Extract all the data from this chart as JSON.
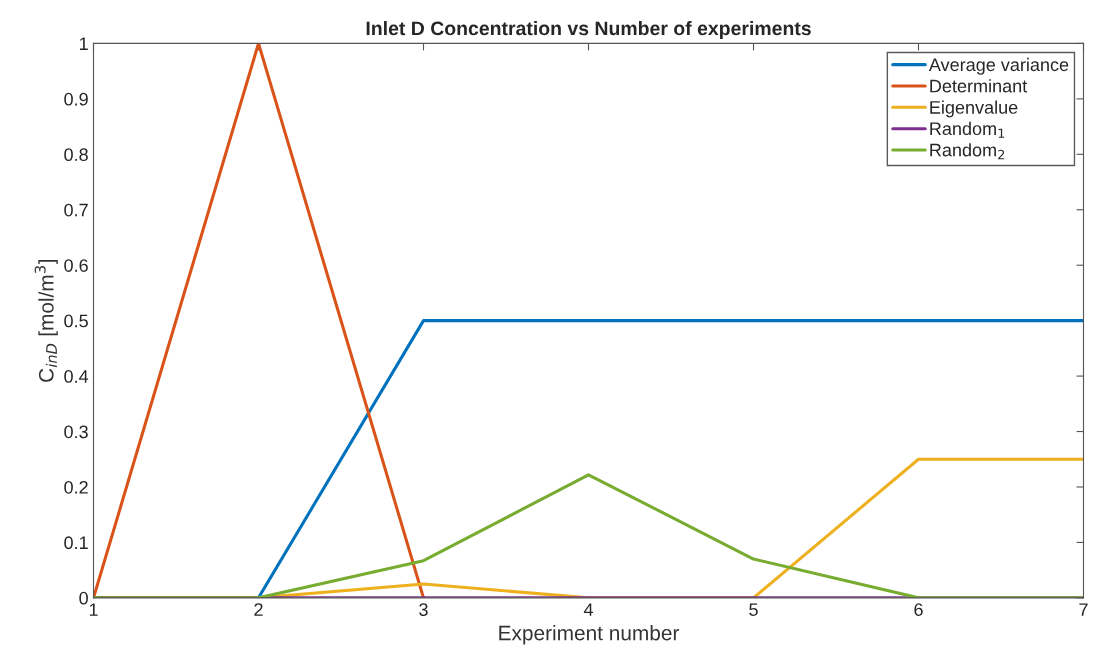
{
  "chart_data": {
    "type": "line",
    "title": "Inlet D Concentration vs Number of experiments",
    "xlabel": "Experiment number",
    "ylabel": "C$_{inD}$ [mol/m$^{3}$]",
    "x": [
      1,
      2,
      3,
      4,
      5,
      6,
      7
    ],
    "series": [
      {
        "name": "Average variance",
        "color": "#0072bd",
        "values": [
          0,
          0,
          0.5,
          0.5,
          0.5,
          0.5,
          0.5
        ]
      },
      {
        "name": "Determinant",
        "color": "#d95319",
        "values": [
          0,
          1,
          0,
          null,
          null,
          null,
          null
        ]
      },
      {
        "name": "Eigenvalue",
        "color": "#edb120",
        "values": [
          0,
          0,
          0.025,
          0,
          0,
          0.25,
          0.25
        ]
      },
      {
        "name": "Random$_{1}$",
        "color": "#7e2f8e",
        "values": [
          0,
          0,
          0,
          0,
          0,
          0,
          0
        ]
      },
      {
        "name": "Random$_{2}$",
        "color": "#77ac30",
        "values": [
          0,
          0,
          0.067,
          0.222,
          0.07,
          0,
          0
        ]
      }
    ],
    "xlim": [
      1,
      7
    ],
    "xticks": [
      1,
      2,
      3,
      4,
      5,
      6,
      7
    ],
    "ylim": [
      0,
      1
    ],
    "yticks": [
      0,
      0.1,
      0.2,
      0.3,
      0.4,
      0.5,
      0.6,
      0.7,
      0.8,
      0.9,
      1
    ],
    "grid": false,
    "legend": "top right",
    "marker": "none",
    "line_style": "solid"
  }
}
